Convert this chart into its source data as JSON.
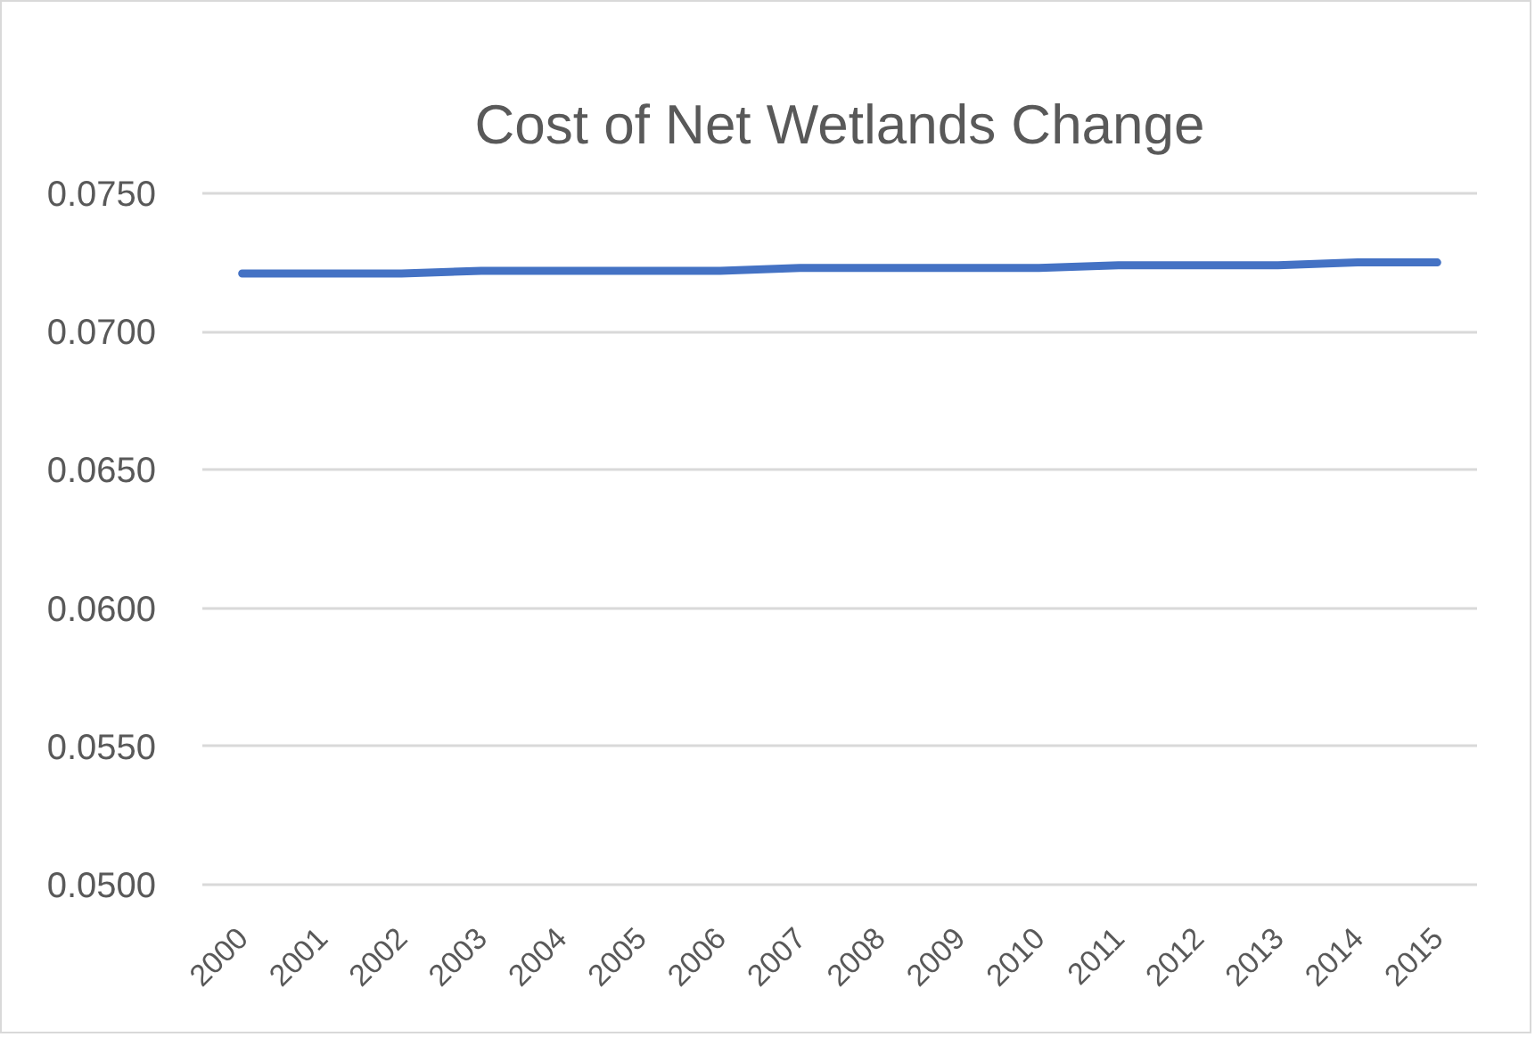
{
  "chart_data": {
    "type": "line",
    "title": "Cost of Net Wetlands Change",
    "categories": [
      "2000",
      "2001",
      "2002",
      "2003",
      "2004",
      "2005",
      "2006",
      "2007",
      "2008",
      "2009",
      "2010",
      "2011",
      "2012",
      "2013",
      "2014",
      "2015"
    ],
    "series": [
      {
        "color": "#4472c4",
        "values": [
          0.0721,
          0.0721,
          0.0721,
          0.0722,
          0.0722,
          0.0722,
          0.0722,
          0.0723,
          0.0723,
          0.0723,
          0.0723,
          0.0724,
          0.0724,
          0.0724,
          0.0725,
          0.0725
        ]
      }
    ],
    "ylim": [
      0.05,
      0.075
    ],
    "yticks": [
      {
        "value": 0.05,
        "label": "0.0500"
      },
      {
        "value": 0.055,
        "label": "0.0550"
      },
      {
        "value": 0.06,
        "label": "0.0600"
      },
      {
        "value": 0.065,
        "label": "0.0650"
      },
      {
        "value": 0.07,
        "label": "0.0700"
      },
      {
        "value": 0.075,
        "label": "0.0750"
      }
    ],
    "grid": "y"
  }
}
